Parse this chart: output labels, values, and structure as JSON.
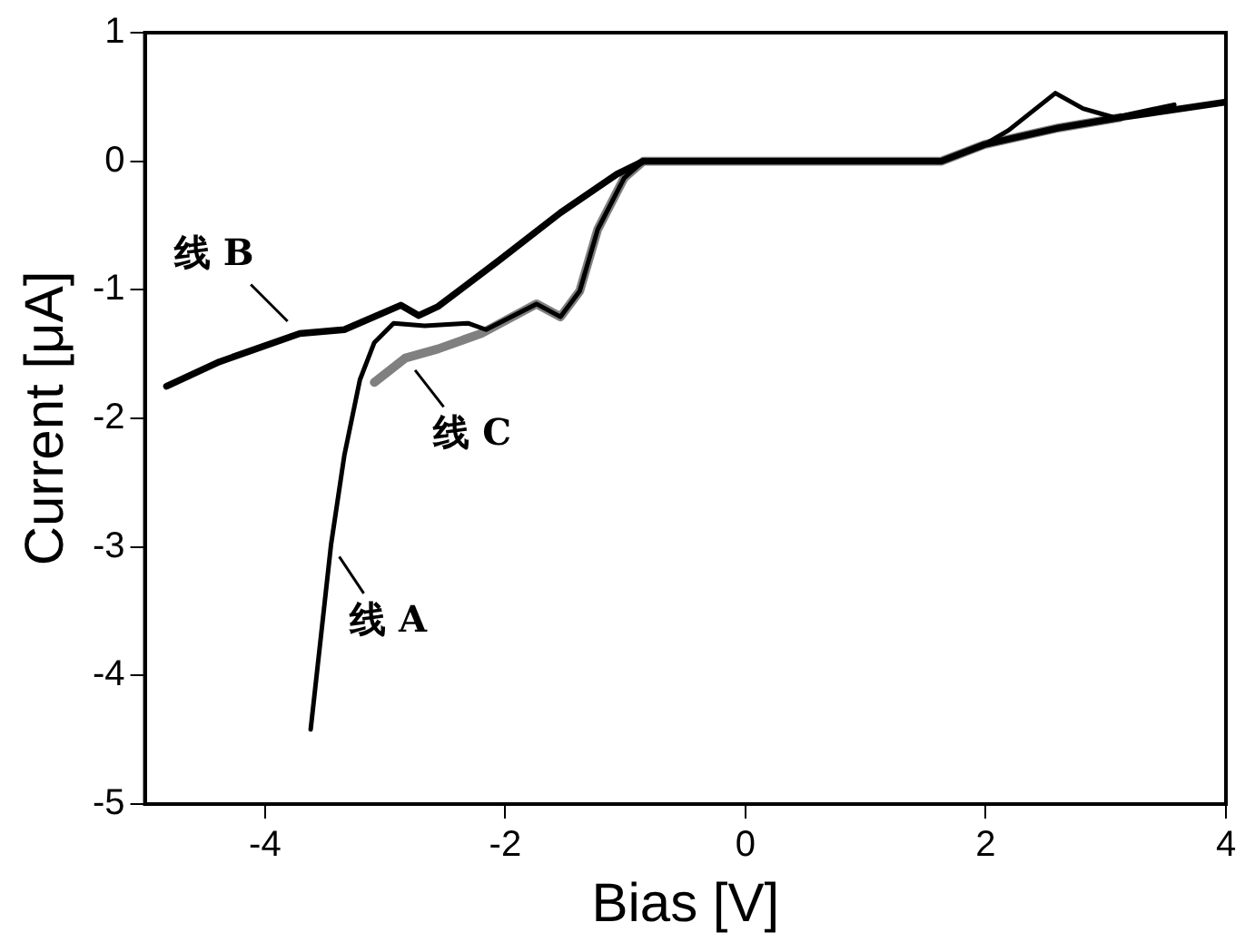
{
  "chart_data": {
    "type": "line",
    "xlabel": "Bias [V]",
    "ylabel": "Current [μA]",
    "xlim": [
      -5,
      4
    ],
    "xticks": [
      -4,
      -2,
      0,
      2,
      4
    ],
    "ylim": [
      -5,
      1
    ],
    "yticks": [
      -5,
      -4,
      -3,
      -2,
      -1,
      0,
      1
    ],
    "grid": false,
    "legend": false,
    "annotations": [
      {
        "text": "线 A",
        "x": -3.45,
        "y": -2.98
      },
      {
        "text": "线 B",
        "x": -3.71,
        "y": -1.34
      },
      {
        "text": "线 C",
        "x": -2.83,
        "y": -1.53
      }
    ],
    "marker": "none",
    "line_style": "solid",
    "series": [
      {
        "color": "#000000",
        "x": [
          -3.62,
          -3.45,
          -3.34,
          -3.21,
          -3.09,
          -2.93,
          -2.67,
          -2.31,
          -2.16,
          -1.74,
          -1.54,
          -1.38,
          -1.23,
          -1.01,
          -0.85,
          0,
          1.63,
          1.99,
          2.19,
          2.58,
          2.81,
          3.07,
          3.57
        ],
        "values": [
          -4.42,
          -2.98,
          -2.29,
          -1.7,
          -1.41,
          -1.26,
          -1.28,
          -1.26,
          -1.31,
          -1.11,
          -1.21,
          -1.01,
          -0.53,
          -0.13,
          0,
          0,
          0,
          0.13,
          0.24,
          0.53,
          0.41,
          0.34,
          0.44
        ]
      },
      {
        "color": "#000000",
        "x": [
          -4.82,
          -4.38,
          -3.71,
          -3.34,
          -2.87,
          -2.72,
          -2.56,
          -2.05,
          -1.54,
          -1.07,
          -0.85,
          0,
          1.63,
          1.99,
          2.61,
          3.12,
          4.0
        ],
        "values": [
          -1.75,
          -1.56,
          -1.34,
          -1.31,
          -1.12,
          -1.2,
          -1.13,
          -0.77,
          -0.4,
          -0.1,
          0,
          0,
          0,
          0.13,
          0.26,
          0.34,
          0.46
        ]
      },
      {
        "color": "#808080",
        "x": [
          -3.09,
          -2.83,
          -2.56,
          -2.2,
          -1.74,
          -1.54,
          -1.38,
          -1.23,
          -1.01,
          -0.85,
          0,
          1.63,
          1.99,
          2.61,
          3.12
        ],
        "values": [
          -1.72,
          -1.53,
          -1.46,
          -1.34,
          -1.11,
          -1.21,
          -1.01,
          -0.53,
          -0.13,
          0,
          0,
          0,
          0.13,
          0.26,
          0.34
        ]
      }
    ]
  }
}
